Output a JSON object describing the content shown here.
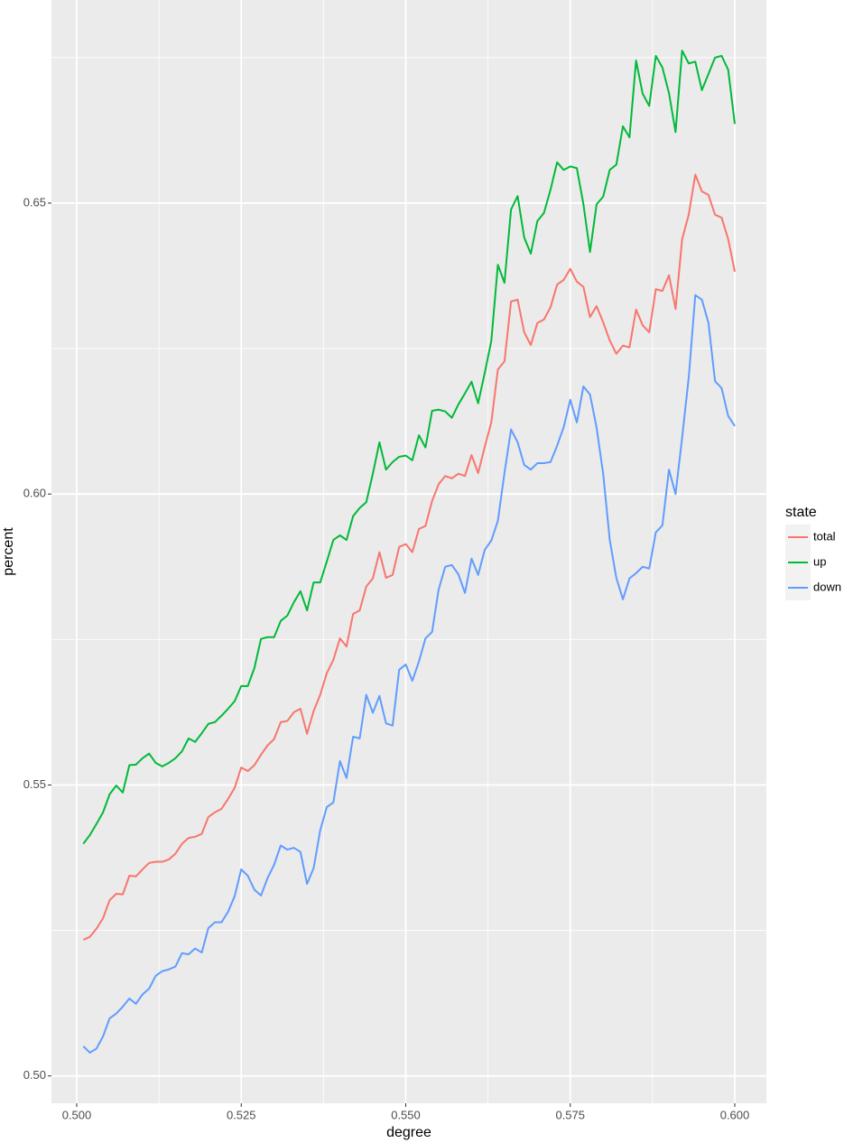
{
  "chart_data": {
    "type": "line",
    "x_label": "degree",
    "y_label": "percent",
    "legend_title": "state",
    "legend_position": "right",
    "grid": true,
    "xlim": [
      0.49616,
      0.6048
    ],
    "ylim": [
      0.4953,
      0.6849
    ],
    "xticks": [
      {
        "value": 0.5,
        "label": "0.500"
      },
      {
        "value": 0.525,
        "label": "0.525"
      },
      {
        "value": 0.55,
        "label": "0.550"
      },
      {
        "value": 0.575,
        "label": "0.575"
      },
      {
        "value": 0.6,
        "label": "0.600"
      }
    ],
    "yticks": [
      {
        "value": 0.5,
        "label": "0.50"
      },
      {
        "value": 0.55,
        "label": "0.55"
      },
      {
        "value": 0.6,
        "label": "0.60"
      },
      {
        "value": 0.65,
        "label": "0.65"
      }
    ],
    "x": [
      0.501,
      0.502,
      0.503,
      0.504,
      0.505,
      0.506,
      0.507,
      0.508,
      0.509,
      0.51,
      0.511,
      0.512,
      0.513,
      0.514,
      0.515,
      0.516,
      0.517,
      0.518,
      0.519,
      0.52,
      0.521,
      0.522,
      0.523,
      0.524,
      0.525,
      0.526,
      0.527,
      0.528,
      0.529,
      0.53,
      0.531,
      0.532,
      0.533,
      0.534,
      0.535,
      0.536,
      0.537,
      0.538,
      0.539,
      0.54,
      0.541,
      0.542,
      0.543,
      0.544,
      0.545,
      0.546,
      0.547,
      0.548,
      0.549,
      0.55,
      0.551,
      0.552,
      0.553,
      0.554,
      0.555,
      0.556,
      0.557,
      0.558,
      0.559,
      0.56,
      0.561,
      0.562,
      0.563,
      0.564,
      0.565,
      0.566,
      0.567,
      0.568,
      0.569,
      0.57,
      0.571,
      0.572,
      0.573,
      0.574,
      0.575,
      0.576,
      0.577,
      0.578,
      0.579,
      0.58,
      0.581,
      0.582,
      0.583,
      0.584,
      0.585,
      0.586,
      0.587,
      0.588,
      0.589,
      0.59,
      0.591,
      0.592,
      0.593,
      0.594,
      0.595,
      0.596,
      0.597,
      0.598,
      0.599,
      0.6
    ],
    "series": [
      {
        "name": "total",
        "color": "#F8766D",
        "values": [
          0.5234,
          0.5239,
          0.5253,
          0.5271,
          0.5302,
          0.5313,
          0.5312,
          0.5344,
          0.5343,
          0.5355,
          0.5366,
          0.5368,
          0.5368,
          0.5372,
          0.5382,
          0.5399,
          0.5409,
          0.5411,
          0.5416,
          0.5445,
          0.5453,
          0.5459,
          0.5476,
          0.5495,
          0.553,
          0.5524,
          0.5534,
          0.5552,
          0.5568,
          0.5579,
          0.5608,
          0.561,
          0.5625,
          0.5631,
          0.5588,
          0.5627,
          0.5655,
          0.5692,
          0.5715,
          0.5752,
          0.5738,
          0.5794,
          0.58,
          0.5841,
          0.5855,
          0.59,
          0.5856,
          0.5861,
          0.5909,
          0.5914,
          0.59,
          0.594,
          0.5945,
          0.5988,
          0.6017,
          0.6031,
          0.6027,
          0.6035,
          0.6031,
          0.6067,
          0.6036,
          0.6081,
          0.6123,
          0.6214,
          0.6228,
          0.6331,
          0.6334,
          0.6278,
          0.6256,
          0.6294,
          0.63,
          0.6321,
          0.636,
          0.6368,
          0.6387,
          0.6365,
          0.6356,
          0.6304,
          0.6323,
          0.6295,
          0.6264,
          0.6241,
          0.6255,
          0.6252,
          0.6317,
          0.629,
          0.6278,
          0.6352,
          0.6349,
          0.6376,
          0.6318,
          0.6438,
          0.648,
          0.6549,
          0.652,
          0.6514,
          0.648,
          0.6475,
          0.6438,
          0.6382
        ]
      },
      {
        "name": "up",
        "color": "#00BA38",
        "values": [
          0.5399,
          0.5414,
          0.5433,
          0.5453,
          0.5484,
          0.5499,
          0.5487,
          0.5534,
          0.5535,
          0.5546,
          0.5554,
          0.5538,
          0.5532,
          0.5538,
          0.5546,
          0.5558,
          0.558,
          0.5574,
          0.5589,
          0.5605,
          0.5608,
          0.5619,
          0.5631,
          0.5644,
          0.567,
          0.567,
          0.5701,
          0.5751,
          0.5754,
          0.5754,
          0.5782,
          0.5791,
          0.5814,
          0.5833,
          0.58,
          0.5848,
          0.5848,
          0.5884,
          0.5921,
          0.5929,
          0.5921,
          0.5962,
          0.5976,
          0.5986,
          0.6035,
          0.6089,
          0.6042,
          0.6055,
          0.6064,
          0.6066,
          0.6058,
          0.6101,
          0.608,
          0.6143,
          0.6145,
          0.6142,
          0.6131,
          0.6154,
          0.6173,
          0.6193,
          0.6156,
          0.6208,
          0.6263,
          0.6394,
          0.6363,
          0.6489,
          0.6512,
          0.6441,
          0.6413,
          0.6469,
          0.6483,
          0.6523,
          0.657,
          0.6557,
          0.6563,
          0.656,
          0.6498,
          0.6416,
          0.6498,
          0.6511,
          0.6557,
          0.6566,
          0.6632,
          0.6613,
          0.6745,
          0.6688,
          0.6667,
          0.6753,
          0.6733,
          0.6689,
          0.6622,
          0.6762,
          0.674,
          0.6743,
          0.6694,
          0.6722,
          0.675,
          0.6753,
          0.6729,
          0.6636
        ]
      },
      {
        "name": "down",
        "color": "#619CFF",
        "values": [
          0.5051,
          0.504,
          0.5047,
          0.5068,
          0.5099,
          0.5107,
          0.5119,
          0.5133,
          0.5124,
          0.514,
          0.515,
          0.5172,
          0.518,
          0.5183,
          0.5188,
          0.5211,
          0.5209,
          0.5219,
          0.5212,
          0.5254,
          0.5264,
          0.5264,
          0.5282,
          0.5309,
          0.5355,
          0.5344,
          0.532,
          0.531,
          0.534,
          0.5363,
          0.5396,
          0.5389,
          0.5392,
          0.5385,
          0.533,
          0.5357,
          0.5422,
          0.5462,
          0.547,
          0.5541,
          0.5512,
          0.5583,
          0.558,
          0.5655,
          0.5624,
          0.5653,
          0.5606,
          0.5602,
          0.5698,
          0.5707,
          0.5679,
          0.5712,
          0.5752,
          0.5763,
          0.5836,
          0.5875,
          0.5878,
          0.5862,
          0.583,
          0.5889,
          0.5861,
          0.5904,
          0.592,
          0.5954,
          0.6036,
          0.6111,
          0.6089,
          0.605,
          0.6042,
          0.6053,
          0.6053,
          0.6055,
          0.6083,
          0.6115,
          0.6162,
          0.6123,
          0.6185,
          0.6171,
          0.6114,
          0.6035,
          0.5921,
          0.5856,
          0.5819,
          0.5855,
          0.5864,
          0.5875,
          0.5872,
          0.5934,
          0.5946,
          0.6042,
          0.6,
          0.6097,
          0.62,
          0.6342,
          0.6334,
          0.6294,
          0.6194,
          0.6182,
          0.6134,
          0.6117
        ]
      }
    ]
  }
}
